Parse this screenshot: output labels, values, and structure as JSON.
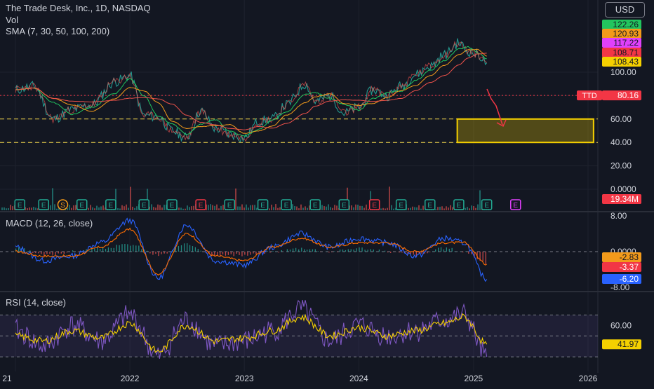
{
  "header": {
    "title": "The Trade Desk, Inc., 1D, NASDAQ",
    "vol": "Vol",
    "sma": "SMA (7, 30, 50, 100, 200)",
    "currency": "USD"
  },
  "colors": {
    "background": "#131722",
    "price_line": "#26a69a",
    "sma_fast": "#22c55e",
    "sma_slow": "#f0524b",
    "dashed_level": "#f2d64b",
    "macd_line": "#2962ff",
    "signal_line": "#ff6d00",
    "rsi_line": "#7e57c2",
    "rsi_ma": "#f5d000"
  },
  "chart_data": [
    {
      "type": "line",
      "title": "The Trade Desk, Inc., 1D, NASDAQ",
      "x": [
        "2021-01-01",
        "2021-03-01",
        "2021-05-01",
        "2021-07-01",
        "2021-09-01",
        "2021-11-15",
        "2022-01-01",
        "2022-02-15",
        "2022-04-01",
        "2022-05-15",
        "2022-07-01",
        "2022-08-15",
        "2022-10-01",
        "2022-11-15",
        "2023-01-01",
        "2023-02-15",
        "2023-04-01",
        "2023-05-15",
        "2023-07-15",
        "2023-08-15",
        "2023-10-01",
        "2023-11-15",
        "2024-01-01",
        "2024-02-15",
        "2024-04-01",
        "2024-05-15",
        "2024-07-01",
        "2024-08-15",
        "2024-10-01",
        "2024-11-15",
        "2024-12-15",
        "2025-01-15",
        "2025-02-12"
      ],
      "series": [
        {
          "values": [
            85,
            88,
            60,
            68,
            72,
            92,
            97,
            63,
            62,
            50,
            44,
            67,
            52,
            47,
            44,
            58,
            60,
            72,
            90,
            75,
            80,
            65,
            70,
            85,
            80,
            88,
            98,
            105,
            115,
            125,
            118,
            115,
            108
          ]
        }
      ],
      "ylim": [
        0,
        130
      ],
      "price_labels": [
        "100.00",
        "60.00",
        "40.00",
        "20.00",
        "0.0000"
      ],
      "horizontal_levels": [
        {
          "value": 80.16,
          "style": "dotted"
        },
        {
          "value": 60,
          "style": "dashed"
        },
        {
          "value": 40,
          "style": "dashed"
        }
      ],
      "target_zone": {
        "from_date": "2024-11-01",
        "to_date": "2026-02-01",
        "low": 40,
        "high": 60
      },
      "badges": [
        {
          "text": "122.26",
          "bg": "#22c55e",
          "fg": "#131722",
          "value": 122.26
        },
        {
          "text": "120.93",
          "bg": "#f29a1b",
          "fg": "#131722",
          "value": 120.93
        },
        {
          "text": "117.22",
          "bg": "#e040fb",
          "fg": "#131722",
          "value": 117.22
        },
        {
          "text": "108.71",
          "bg": "#f23645",
          "fg": "#131722",
          "value": 108.71
        },
        {
          "text": "108.43",
          "bg": "#f5d000",
          "fg": "#131722",
          "value": 108.43
        },
        {
          "text": "80.16",
          "bg": "#f23645",
          "fg": "#ffffff",
          "value": 80.16,
          "tag": "TTD"
        }
      ],
      "legend": "top-left",
      "grid": true
    },
    {
      "type": "bar",
      "title": "Vol",
      "badge": "19.34M"
    },
    {
      "type": "line",
      "title": "MACD (12, 26, close)",
      "x": [
        "2021-01-01",
        "2021-04-01",
        "2021-07-01",
        "2021-10-01",
        "2022-01-01",
        "2022-04-01",
        "2022-07-01",
        "2022-10-01",
        "2023-01-01",
        "2023-04-01",
        "2023-07-01",
        "2023-10-01",
        "2024-01-01",
        "2024-04-01",
        "2024-07-01",
        "2024-10-01",
        "2024-12-01",
        "2025-02-12"
      ],
      "series": [
        {
          "values": [
            1,
            -2,
            -1,
            2,
            7,
            -6,
            6,
            -2,
            -3,
            1,
            4,
            1,
            3,
            2,
            -1,
            3,
            2,
            -6.2
          ]
        },
        {
          "values": [
            0,
            -1,
            -1,
            1,
            5,
            -5,
            4,
            -1,
            -2,
            1,
            3,
            1,
            2,
            2,
            0,
            2,
            2,
            -2.83
          ]
        }
      ],
      "ylim": [
        -9,
        9
      ],
      "tick_labels": [
        "8.00",
        "0.0000",
        "-8.00"
      ],
      "badges": [
        {
          "text": "-2.83",
          "bg": "#f29a1b",
          "fg": "#131722",
          "value": -2.83
        },
        {
          "text": "-3.37",
          "bg": "#f23645",
          "fg": "#ffffff",
          "value": -3.37
        },
        {
          "text": "-6.20",
          "bg": "#2962ff",
          "fg": "#ffffff",
          "value": -6.2
        }
      ]
    },
    {
      "type": "line",
      "title": "RSI (14, close)",
      "x": [
        "2021-01-01",
        "2021-04-01",
        "2021-07-01",
        "2021-10-01",
        "2022-01-01",
        "2022-04-01",
        "2022-07-01",
        "2022-10-01",
        "2023-01-01",
        "2023-04-01",
        "2023-07-01",
        "2023-10-01",
        "2024-01-01",
        "2024-04-01",
        "2024-07-01",
        "2024-10-01",
        "2024-12-01",
        "2025-02-12"
      ],
      "series": [
        {
          "values": [
            55,
            40,
            60,
            45,
            70,
            30,
            65,
            40,
            45,
            55,
            75,
            45,
            60,
            50,
            55,
            65,
            70,
            30
          ]
        },
        {
          "values": [
            50,
            45,
            55,
            48,
            62,
            35,
            60,
            45,
            48,
            55,
            68,
            50,
            58,
            50,
            55,
            62,
            68,
            41.97
          ]
        }
      ],
      "ylim": [
        20,
        85
      ],
      "tick_labels": [
        "60.00"
      ],
      "bands": [
        70,
        50,
        30
      ],
      "badge": {
        "text": "41.97",
        "bg": "#f5d000",
        "fg": "#131722",
        "value": 41.97
      }
    }
  ],
  "time_axis": {
    "labels": [
      "21",
      "2022",
      "2023",
      "2024",
      "2025",
      "2026"
    ]
  },
  "events": [
    {
      "date": "2021-01-15",
      "letter": "E",
      "color": "#22ab94"
    },
    {
      "date": "2021-04-01",
      "letter": "E",
      "color": "#22ab94"
    },
    {
      "date": "2021-06-01",
      "letter": "S",
      "color": "#f29a1b"
    },
    {
      "date": "2021-08-01",
      "letter": "E",
      "color": "#22ab94"
    },
    {
      "date": "2021-11-01",
      "letter": "E",
      "color": "#22ab94"
    },
    {
      "date": "2022-02-15",
      "letter": "E",
      "color": "#22ab94"
    },
    {
      "date": "2022-05-15",
      "letter": "E",
      "color": "#22ab94"
    },
    {
      "date": "2022-08-15",
      "letter": "E",
      "color": "#f23645"
    },
    {
      "date": "2022-11-15",
      "letter": "E",
      "color": "#22ab94"
    },
    {
      "date": "2023-03-01",
      "letter": "E",
      "color": "#22ab94"
    },
    {
      "date": "2023-05-15",
      "letter": "E",
      "color": "#22ab94"
    },
    {
      "date": "2023-08-15",
      "letter": "E",
      "color": "#22ab94"
    },
    {
      "date": "2023-11-15",
      "letter": "E",
      "color": "#22ab94"
    },
    {
      "date": "2024-02-20",
      "letter": "E",
      "color": "#f23645"
    },
    {
      "date": "2024-05-15",
      "letter": "E",
      "color": "#22ab94"
    },
    {
      "date": "2024-08-15",
      "letter": "E",
      "color": "#22ab94"
    },
    {
      "date": "2024-11-15",
      "letter": "E",
      "color": "#22ab94"
    },
    {
      "date": "2025-02-12",
      "letter": "E",
      "color": "#22ab94"
    },
    {
      "date": "2025-05-15",
      "letter": "E",
      "color": "#e040fb"
    }
  ],
  "macd_pane": {
    "label": "MACD (12, 26, close)"
  },
  "rsi_pane": {
    "label": "RSI (14, close)"
  }
}
